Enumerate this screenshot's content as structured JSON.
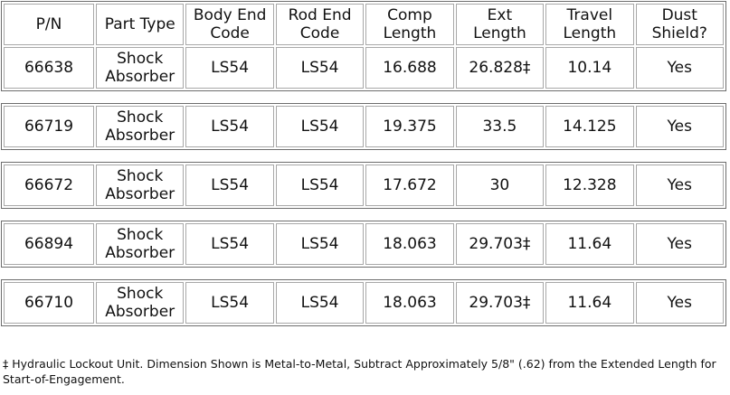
{
  "table": {
    "columns": [
      "P/N",
      "Part Type",
      "Body End Code",
      "Rod End Code",
      "Comp Length",
      "Ext Length",
      "Travel Length",
      "Dust Shield?"
    ],
    "rows": [
      [
        "66638",
        "Shock Absorber",
        "LS54",
        "LS54",
        "16.688",
        "26.828‡",
        "10.14",
        "Yes"
      ],
      [
        "66719",
        "Shock Absorber",
        "LS54",
        "LS54",
        "19.375",
        "33.5",
        "14.125",
        "Yes"
      ],
      [
        "66672",
        "Shock Absorber",
        "LS54",
        "LS54",
        "17.672",
        "30",
        "12.328",
        "Yes"
      ],
      [
        "66894",
        "Shock Absorber",
        "LS54",
        "LS54",
        "18.063",
        "29.703‡",
        "11.64",
        "Yes"
      ],
      [
        "66710",
        "Shock Absorber",
        "LS54",
        "LS54",
        "18.063",
        "29.703‡",
        "11.64",
        "Yes"
      ]
    ]
  },
  "footnote": "‡ Hydraulic Lockout Unit. Dimension Shown is Metal-to-Metal, Subtract Approximately 5/8\" (.62) from the Extended Length for Start-of-Engagement."
}
